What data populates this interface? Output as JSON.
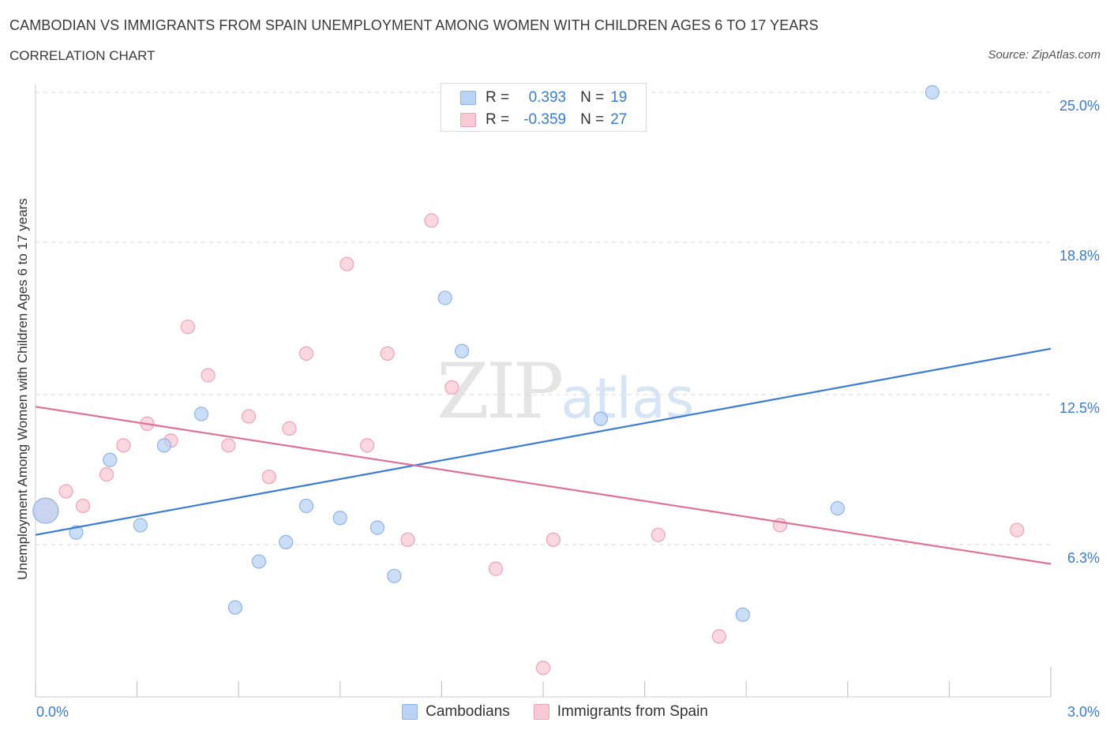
{
  "title": "CAMBODIAN VS IMMIGRANTS FROM SPAIN UNEMPLOYMENT AMONG WOMEN WITH CHILDREN AGES 6 TO 17 YEARS",
  "subtitle": "CORRELATION CHART",
  "source": "Source: ZipAtlas.com",
  "watermark": {
    "zip": "ZIP",
    "atlas": "atlas"
  },
  "legend": {
    "r_label": "R =",
    "n_label": "N =",
    "series": [
      {
        "name": "Cambodians",
        "r": "0.393",
        "n": "19"
      },
      {
        "name": "Immigrants from Spain",
        "r": "-0.359",
        "n": "27"
      }
    ]
  },
  "colors": {
    "blue_fill": "#b9d3f6",
    "blue_stroke": "#8fb3e8",
    "blue_line": "#3a7bd5",
    "pink_fill": "#f9c9d6",
    "pink_stroke": "#eca2b8",
    "pink_line": "#e0709a",
    "grid": "#d9d9d9",
    "tick_text": "#3a7bd5"
  },
  "chart_data": {
    "type": "scatter",
    "title": "CAMBODIAN VS IMMIGRANTS FROM SPAIN UNEMPLOYMENT AMONG WOMEN WITH CHILDREN AGES 6 TO 17 YEARS",
    "xlabel": "",
    "ylabel": "Unemployment Among Women with Children Ages 6 to 17 years",
    "xlim": [
      0.0,
      3.0
    ],
    "ylim": [
      0.0,
      25.0
    ],
    "x_tick_labels": [
      {
        "value": 0.0,
        "label": "0.0%"
      },
      {
        "value": 3.0,
        "label": "3.0%"
      }
    ],
    "y_tick_labels": [
      {
        "value": 6.3,
        "label": "6.3%"
      },
      {
        "value": 12.5,
        "label": "12.5%"
      },
      {
        "value": 18.8,
        "label": "18.8%"
      },
      {
        "value": 25.0,
        "label": "25.0%"
      }
    ],
    "grid": true,
    "series": [
      {
        "name": "Cambodians",
        "color": "#3a7bd5",
        "points": [
          {
            "x": 0.03,
            "y": 7.7,
            "size": "large"
          },
          {
            "x": 0.12,
            "y": 6.8
          },
          {
            "x": 0.22,
            "y": 9.8
          },
          {
            "x": 0.31,
            "y": 7.1
          },
          {
            "x": 0.38,
            "y": 10.4
          },
          {
            "x": 0.49,
            "y": 11.7
          },
          {
            "x": 0.59,
            "y": 3.7
          },
          {
            "x": 0.66,
            "y": 5.6
          },
          {
            "x": 0.74,
            "y": 6.4
          },
          {
            "x": 0.8,
            "y": 7.9
          },
          {
            "x": 0.9,
            "y": 7.4
          },
          {
            "x": 1.01,
            "y": 7.0
          },
          {
            "x": 1.06,
            "y": 5.0
          },
          {
            "x": 1.21,
            "y": 16.5
          },
          {
            "x": 1.26,
            "y": 14.3
          },
          {
            "x": 1.67,
            "y": 11.5
          },
          {
            "x": 2.09,
            "y": 3.4
          },
          {
            "x": 2.37,
            "y": 7.8
          },
          {
            "x": 2.65,
            "y": 25.0
          }
        ],
        "trend": {
          "x": [
            0.0,
            3.0
          ],
          "y": [
            6.7,
            14.4
          ]
        }
      },
      {
        "name": "Immigrants from Spain",
        "color": "#e0709a",
        "points": [
          {
            "x": 0.03,
            "y": 7.7,
            "size": "large"
          },
          {
            "x": 0.09,
            "y": 8.5
          },
          {
            "x": 0.14,
            "y": 7.9
          },
          {
            "x": 0.21,
            "y": 9.2
          },
          {
            "x": 0.26,
            "y": 10.4
          },
          {
            "x": 0.33,
            "y": 11.3
          },
          {
            "x": 0.4,
            "y": 10.6
          },
          {
            "x": 0.45,
            "y": 15.3
          },
          {
            "x": 0.51,
            "y": 13.3
          },
          {
            "x": 0.57,
            "y": 10.4
          },
          {
            "x": 0.63,
            "y": 11.6
          },
          {
            "x": 0.69,
            "y": 9.1
          },
          {
            "x": 0.75,
            "y": 11.1
          },
          {
            "x": 0.8,
            "y": 14.2
          },
          {
            "x": 0.92,
            "y": 17.9
          },
          {
            "x": 0.98,
            "y": 10.4
          },
          {
            "x": 1.04,
            "y": 14.2
          },
          {
            "x": 1.1,
            "y": 6.5
          },
          {
            "x": 1.17,
            "y": 19.7
          },
          {
            "x": 1.23,
            "y": 12.8
          },
          {
            "x": 1.36,
            "y": 5.3
          },
          {
            "x": 1.5,
            "y": 1.2
          },
          {
            "x": 1.53,
            "y": 6.5
          },
          {
            "x": 1.84,
            "y": 6.7
          },
          {
            "x": 2.02,
            "y": 2.5
          },
          {
            "x": 2.2,
            "y": 7.1
          },
          {
            "x": 2.9,
            "y": 6.9
          }
        ],
        "trend": {
          "x": [
            0.0,
            3.0
          ],
          "y": [
            12.0,
            5.5
          ]
        }
      }
    ]
  }
}
